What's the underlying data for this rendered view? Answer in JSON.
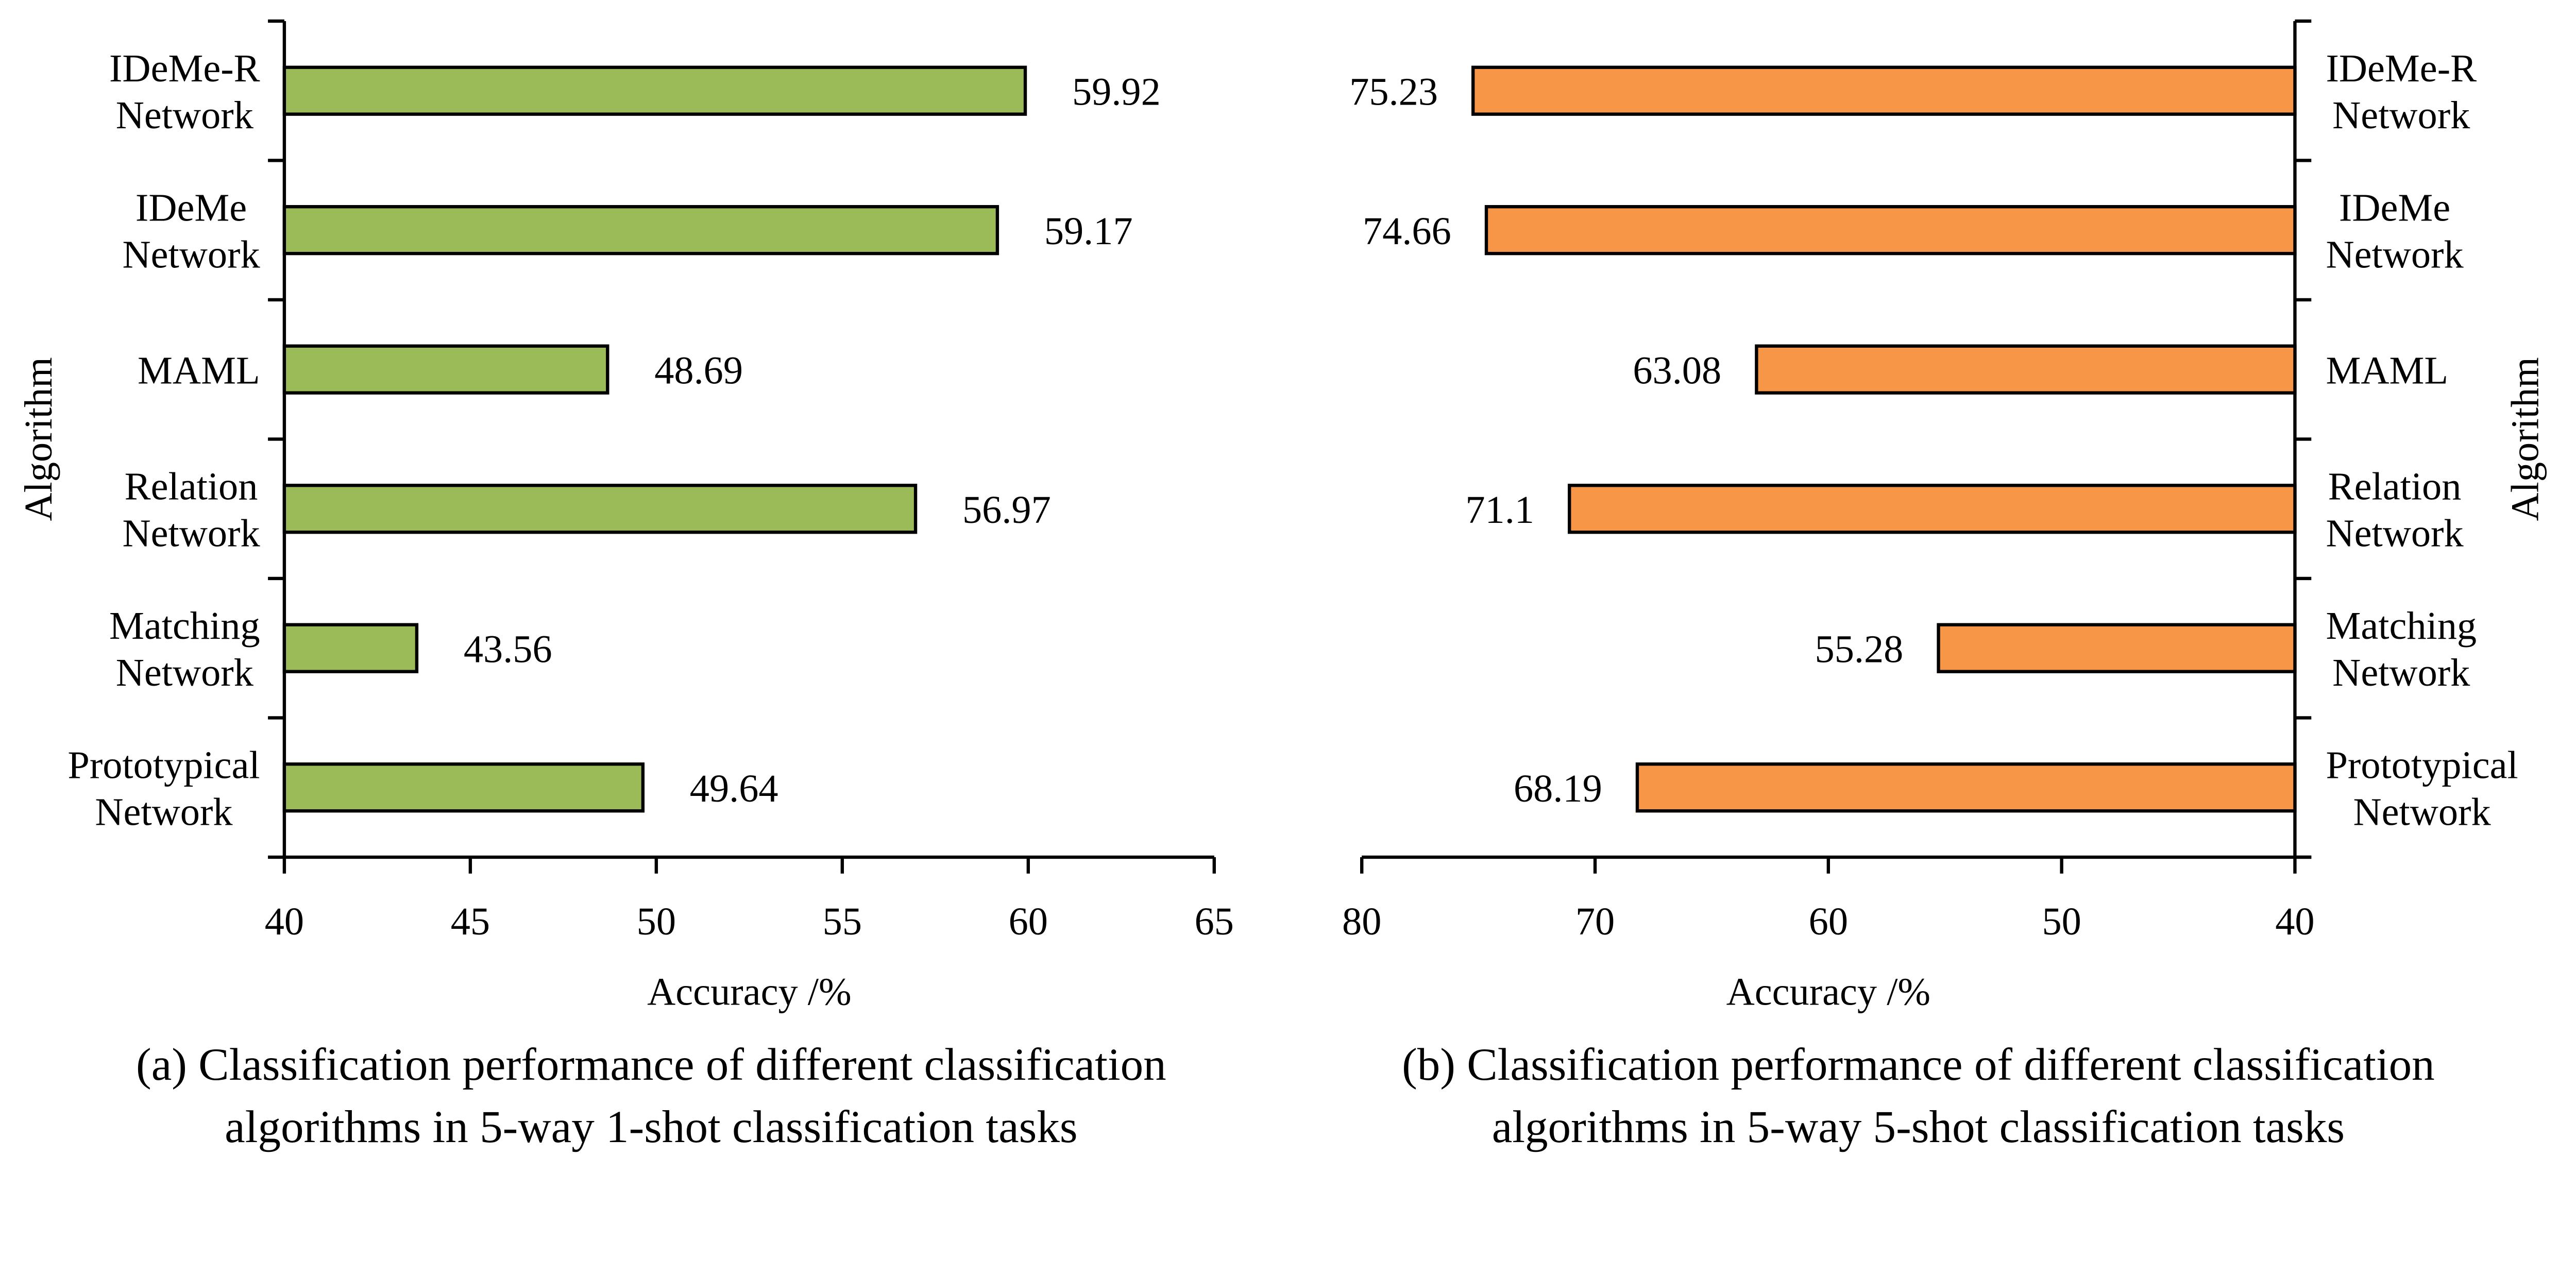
{
  "chart_data": [
    {
      "type": "bar",
      "orientation": "horizontal",
      "categories": [
        [
          "IDeMe-R",
          "Network"
        ],
        [
          "IDeMe",
          "Network"
        ],
        [
          "MAML"
        ],
        [
          "Relation",
          "Network"
        ],
        [
          "Matching",
          "Network"
        ],
        [
          "Prototypical",
          "Network"
        ]
      ],
      "values": [
        59.92,
        59.17,
        48.69,
        56.97,
        43.56,
        49.64
      ],
      "value_labels": [
        "59.92",
        "59.17",
        "48.69",
        "56.97",
        "43.56",
        "49.64"
      ],
      "xlabel": "Accuracy /%",
      "ylabel": "Algorithm",
      "xlim": [
        40,
        65
      ],
      "xticks": [
        "40",
        "45",
        "50",
        "55",
        "60",
        "65"
      ],
      "x_reversed": false,
      "category_axis_side": "left",
      "grid": false,
      "color": "#9BBB59",
      "caption": [
        "(a) Classification performance of different classification",
        "algorithms in 5-way 1-shot classification tasks"
      ]
    },
    {
      "type": "bar",
      "orientation": "horizontal",
      "categories": [
        [
          "IDeMe-R",
          "Network"
        ],
        [
          "IDeMe",
          "Network"
        ],
        [
          "MAML"
        ],
        [
          "Relation",
          "Network"
        ],
        [
          "Matching",
          "Network"
        ],
        [
          "Prototypical",
          "Network"
        ]
      ],
      "values": [
        75.23,
        74.66,
        63.08,
        71.1,
        55.28,
        68.19
      ],
      "value_labels": [
        "75.23",
        "74.66",
        "63.08",
        "71.1",
        "55.28",
        "68.19"
      ],
      "xlabel": "Accuracy /%",
      "ylabel": "Algorithm",
      "xlim": [
        80,
        40
      ],
      "xticks": [
        "80",
        "70",
        "60",
        "50",
        "40"
      ],
      "x_reversed": true,
      "category_axis_side": "right",
      "grid": false,
      "color": "#F79646",
      "caption": [
        "(b) Classification performance of different classification",
        "algorithms in 5-way 5-shot classification tasks"
      ]
    }
  ]
}
